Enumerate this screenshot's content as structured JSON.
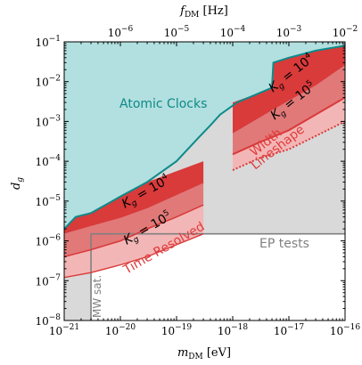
{
  "chart_data": {
    "type": "area",
    "xlabel": "m_DM [eV]",
    "ylabel": "d_g",
    "top_xlabel": "f_DM [Hz]",
    "x_scale": "log",
    "y_scale": "log",
    "xlim": [
      1e-21,
      1e-16
    ],
    "ylim": [
      1e-08,
      0.1
    ],
    "top_xlim": [
      1e-07,
      0.01
    ],
    "x_ticks": [
      {
        "value": 1e-21,
        "mant": "10",
        "exp": "−21"
      },
      {
        "value": 1e-20,
        "mant": "10",
        "exp": "−20"
      },
      {
        "value": 1e-19,
        "mant": "10",
        "exp": "−19"
      },
      {
        "value": 1e-18,
        "mant": "10",
        "exp": "−18"
      },
      {
        "value": 1e-17,
        "mant": "10",
        "exp": "−17"
      },
      {
        "value": 1e-16,
        "mant": "10",
        "exp": "−16"
      }
    ],
    "y_ticks": [
      {
        "value": 1e-08,
        "mant": "10",
        "exp": "−8"
      },
      {
        "value": 1e-07,
        "mant": "10",
        "exp": "−7"
      },
      {
        "value": 1e-06,
        "mant": "10",
        "exp": "−6"
      },
      {
        "value": 1e-05,
        "mant": "10",
        "exp": "−5"
      },
      {
        "value": 0.0001,
        "mant": "10",
        "exp": "−4"
      },
      {
        "value": 0.001,
        "mant": "10",
        "exp": "−3"
      },
      {
        "value": 0.01,
        "mant": "10",
        "exp": "−2"
      },
      {
        "value": 0.1,
        "mant": "10",
        "exp": "−1"
      }
    ],
    "top_ticks": [
      {
        "value": 1e-06,
        "mant": "10",
        "exp": "−6"
      },
      {
        "value": 1e-05,
        "mant": "10",
        "exp": "−5"
      },
      {
        "value": 0.0001,
        "mant": "10",
        "exp": "−4"
      },
      {
        "value": 0.001,
        "mant": "10",
        "exp": "−3"
      },
      {
        "value": 0.01,
        "mant": "10",
        "exp": "−2"
      }
    ],
    "colors": {
      "atomic_fill": "#b2dfdf",
      "atomic_line": "#0e8a8a",
      "red_dark": "#d93a3a",
      "red_medium": "#e17979",
      "red_light": "#f3b6b6",
      "gray_fill": "#d9d9d9",
      "gray_line": "#808080",
      "red_label": "#e03a3a"
    },
    "regions": [
      {
        "name": "Atomic Clocks",
        "color": "atomic_fill",
        "points": [
          [
            1e-21,
            2e-06
          ],
          [
            1.6e-21,
            4e-06
          ],
          [
            3e-21,
            5e-06
          ],
          [
            1e-20,
            1.3e-05
          ],
          [
            3e-20,
            3e-05
          ],
          [
            1e-19,
            0.0001
          ],
          [
            2.5e-19,
            0.0004
          ],
          [
            4e-19,
            0.0008
          ],
          [
            6e-19,
            0.0015
          ],
          [
            1.2e-18,
            0.003
          ],
          [
            5e-18,
            0.007
          ],
          [
            5.3e-18,
            0.03
          ],
          [
            1e-17,
            0.04
          ],
          [
            3e-17,
            0.06
          ],
          [
            1e-16,
            0.08
          ]
        ]
      },
      {
        "name": "Gray EP region",
        "color": "gray_fill",
        "points": [
          [
            1e-21,
            1.5e-06
          ],
          [
            1e-16,
            1.5e-06
          ]
        ]
      },
      {
        "name": "Kg=1e4 TR",
        "color": "red_dark",
        "points": [
          [
            1e-21,
            1.6e-06
          ],
          [
            3e-21,
            2.5e-06
          ],
          [
            1e-20,
            4e-06
          ],
          [
            3e-20,
            7e-06
          ],
          [
            1e-19,
            1.5e-05
          ],
          [
            3e-19,
            3e-05
          ]
        ]
      },
      {
        "name": "Kg=1e5 TR",
        "color": "red_medium",
        "points": [
          [
            1e-21,
            4e-07
          ],
          [
            3e-21,
            6e-07
          ],
          [
            1e-20,
            1e-06
          ],
          [
            3e-20,
            2e-06
          ],
          [
            1e-19,
            4e-06
          ],
          [
            3e-19,
            8e-06
          ]
        ]
      },
      {
        "name": "Time Resolved floor",
        "color": "red_light",
        "points": [
          [
            1e-21,
            1.2e-07
          ],
          [
            3e-21,
            1.6e-07
          ],
          [
            1e-20,
            2.5e-07
          ],
          [
            3e-20,
            4e-07
          ],
          [
            1e-19,
            8e-07
          ],
          [
            3e-19,
            1.5e-06
          ]
        ]
      },
      {
        "name": "Width Kg=1e4",
        "color": "red_dark",
        "points": [
          [
            1e-18,
            0.0005
          ],
          [
            5.3e-18,
            0.002
          ],
          [
            3e-17,
            0.008
          ],
          [
            1e-16,
            0.026
          ]
        ]
      },
      {
        "name": "Width Kg=1e5",
        "color": "red_medium",
        "points": [
          [
            1e-18,
            0.00015
          ],
          [
            3e-18,
            0.0003
          ],
          [
            1e-17,
            0.0006
          ],
          [
            1e-16,
            0.004
          ]
        ]
      },
      {
        "name": "Lineshape",
        "color": "red_light",
        "points": [
          [
            1e-18,
            6e-05
          ],
          [
            3e-18,
            0.00012
          ],
          [
            1e-17,
            0.0002
          ],
          [
            1e-16,
            0.001
          ]
        ]
      }
    ],
    "annotations": {
      "atomic": "Atomic Clocks",
      "kg4_left_base": "K",
      "kg4_left_sub": "g",
      "kg4_left_eq": " = 10",
      "kg4_left_exp": "4",
      "kg5_left_base": "K",
      "kg5_left_sub": "g",
      "kg5_left_eq": " = 10",
      "kg5_left_exp": "5",
      "kg4_right_base": "K",
      "kg4_right_sub": "g",
      "kg4_right_eq": " = 10",
      "kg4_right_exp": "4",
      "kg5_right_base": "K",
      "kg5_right_sub": "g",
      "kg5_right_eq": " = 10",
      "kg5_right_exp": "5",
      "time_resolved": "Time Resolved",
      "width": "Width",
      "lineshape": "Lineshape",
      "ep_tests": "EP tests",
      "mw_sat": "MW sat."
    }
  }
}
